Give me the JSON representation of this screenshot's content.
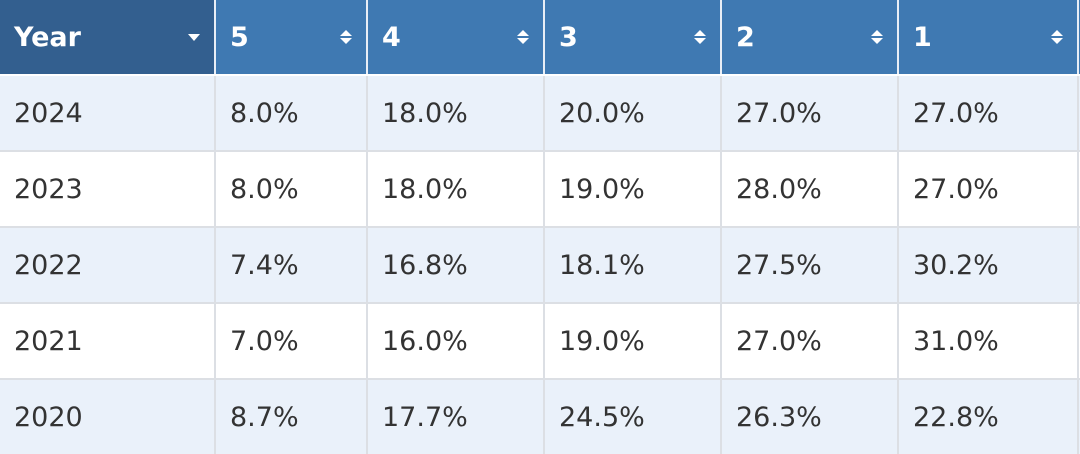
{
  "table": {
    "header": {
      "year_label": "Year",
      "columns": [
        "5",
        "4",
        "3",
        "2",
        "1"
      ]
    },
    "rows": [
      {
        "year": "2024",
        "values": [
          "8.0%",
          "18.0%",
          "20.0%",
          "27.0%",
          "27.0%"
        ]
      },
      {
        "year": "2023",
        "values": [
          "8.0%",
          "18.0%",
          "19.0%",
          "28.0%",
          "27.0%"
        ]
      },
      {
        "year": "2022",
        "values": [
          "7.4%",
          "16.8%",
          "18.1%",
          "27.5%",
          "30.2%"
        ]
      },
      {
        "year": "2021",
        "values": [
          "7.0%",
          "16.0%",
          "19.0%",
          "27.0%",
          "31.0%"
        ]
      },
      {
        "year": "2020",
        "values": [
          "8.7%",
          "17.7%",
          "24.5%",
          "26.3%",
          "22.8%"
        ]
      }
    ]
  },
  "colors": {
    "header_bg": "#3f79b2",
    "header_active_bg": "#335f8f",
    "row_alt_bg": "#eaf1fa",
    "text": "#333333"
  },
  "icons": {
    "year_header": "chevron-down-icon",
    "column_headers": "sort-icon"
  }
}
